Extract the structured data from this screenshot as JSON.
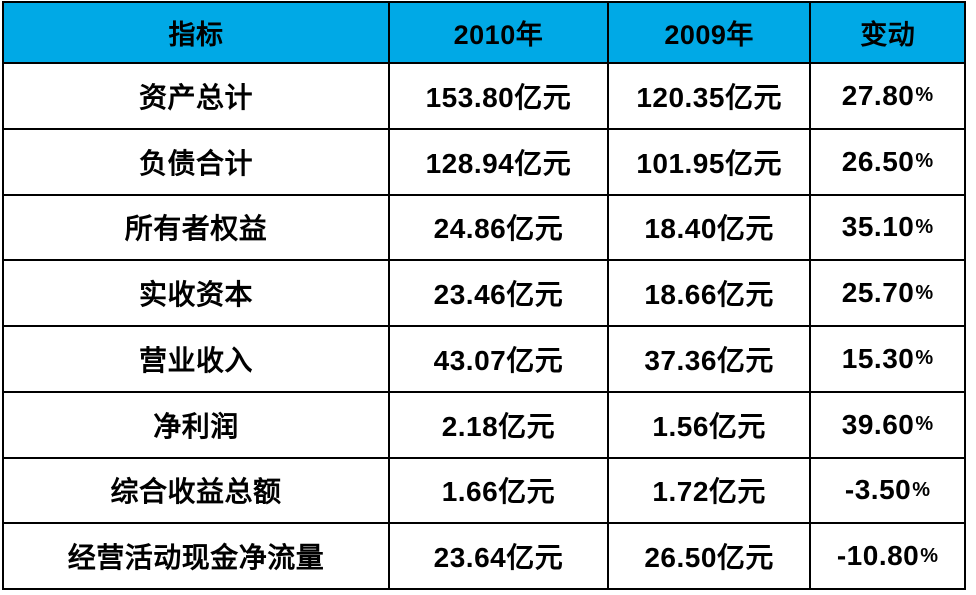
{
  "table": {
    "headers": [
      "指标",
      "2010年",
      "2009年",
      "变动"
    ],
    "rows": [
      {
        "indicator": "资产总计",
        "v2010": "153.80亿元",
        "v2009": "120.35亿元",
        "change": "27.80",
        "pct": "%"
      },
      {
        "indicator": "负债合计",
        "v2010": "128.94亿元",
        "v2009": "101.95亿元",
        "change": "26.50",
        "pct": "%"
      },
      {
        "indicator": "所有者权益",
        "v2010": "24.86亿元",
        "v2009": "18.40亿元",
        "change": "35.10",
        "pct": "%"
      },
      {
        "indicator": "实收资本",
        "v2010": "23.46亿元",
        "v2009": "18.66亿元",
        "change": "25.70",
        "pct": "%"
      },
      {
        "indicator": "营业收入",
        "v2010": "43.07亿元",
        "v2009": "37.36亿元",
        "change": "15.30",
        "pct": "%"
      },
      {
        "indicator": "净利润",
        "v2010": "2.18亿元",
        "v2009": "1.56亿元",
        "change": "39.60",
        "pct": "%"
      },
      {
        "indicator": "综合收益总额",
        "v2010": "1.66亿元",
        "v2009": "1.72亿元",
        "change": "-3.50",
        "pct": "%"
      },
      {
        "indicator": "经营活动现金净流量",
        "v2010": "23.64亿元",
        "v2009": "26.50亿元",
        "change": "-10.80",
        "pct": "%"
      }
    ]
  },
  "chart_data": {
    "type": "table",
    "title": "",
    "columns": [
      "指标",
      "2010年",
      "2009年",
      "变动"
    ],
    "rows": [
      [
        "资产总计",
        "153.80亿元",
        "120.35亿元",
        "27.80%"
      ],
      [
        "负债合计",
        "128.94亿元",
        "101.95亿元",
        "26.50%"
      ],
      [
        "所有者权益",
        "24.86亿元",
        "18.40亿元",
        "35.10%"
      ],
      [
        "实收资本",
        "23.46亿元",
        "18.66亿元",
        "25.70%"
      ],
      [
        "营业收入",
        "43.07亿元",
        "37.36亿元",
        "15.30%"
      ],
      [
        "净利润",
        "2.18亿元",
        "1.56亿元",
        "39.60%"
      ],
      [
        "综合收益总额",
        "1.66亿元",
        "1.72亿元",
        "-3.50%"
      ],
      [
        "经营活动现金净流量",
        "23.64亿元",
        "26.50亿元",
        "-10.80%"
      ]
    ],
    "unit": "亿元"
  },
  "colors": {
    "header_bg": "#00A9E6",
    "grid_line": "#000000",
    "text": "#000000",
    "row_bg": "#FFFFFF"
  }
}
